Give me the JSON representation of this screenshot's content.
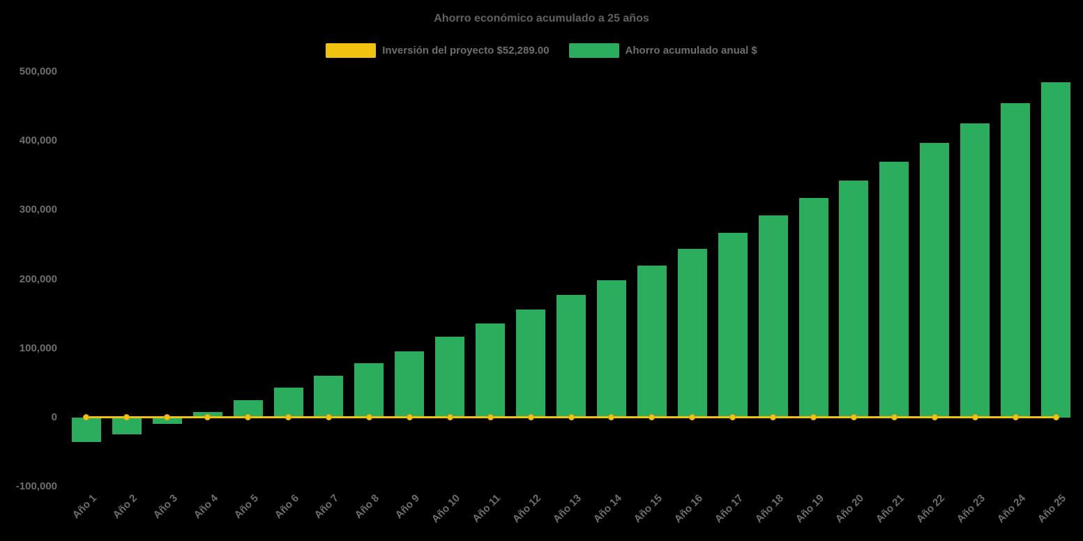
{
  "chart_data": {
    "type": "bar",
    "title": "Ahorro económico acumulado a 25 años",
    "categories": [
      "Año 1",
      "Año 2",
      "Año 3",
      "Año 4",
      "Año 5",
      "Año 6",
      "Año 7",
      "Año 8",
      "Año 9",
      "Año 10",
      "Año 11",
      "Año 12",
      "Año 13",
      "Año 14",
      "Año 15",
      "Año 16",
      "Año 17",
      "Año 18",
      "Año 19",
      "Año 20",
      "Año 21",
      "Año 22",
      "Año 23",
      "Año 24",
      "Año 25"
    ],
    "series": [
      {
        "name": "Inversión del proyecto $52,289.00",
        "type": "line",
        "color": "#F2C211",
        "values": [
          0,
          0,
          0,
          0,
          0,
          0,
          0,
          0,
          0,
          0,
          0,
          0,
          0,
          0,
          0,
          0,
          0,
          0,
          0,
          0,
          0,
          0,
          0,
          0,
          0
        ]
      },
      {
        "name": "Ahorro acumulado anual $",
        "type": "bar",
        "color": "#2BAD5E",
        "values": [
          -35000,
          -24000,
          -9000,
          8000,
          25000,
          43000,
          60000,
          78000,
          96000,
          117000,
          136000,
          156000,
          177000,
          198000,
          220000,
          244000,
          267000,
          292000,
          317000,
          343000,
          370000,
          397000,
          425000,
          455000,
          485000
        ]
      }
    ],
    "ylim": [
      -100000,
      500000
    ],
    "ytick_step": 100000,
    "xlabel": "",
    "ylabel": "",
    "grid": false,
    "legend_position": "top",
    "background": "#000000",
    "text_color": "#6e6e6e"
  }
}
